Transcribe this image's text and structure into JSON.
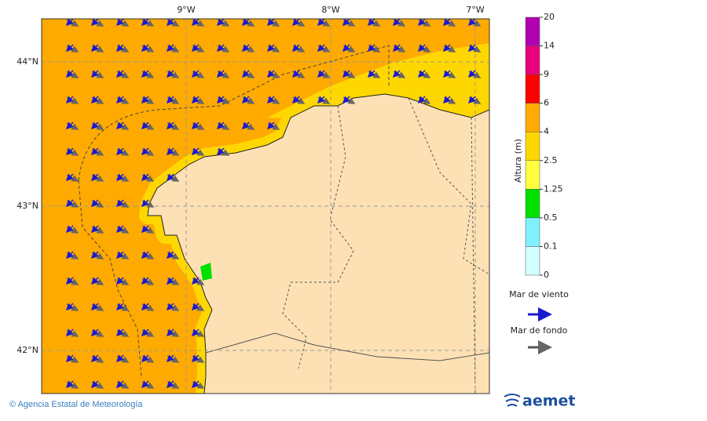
{
  "map": {
    "lon_labels": [
      "9°W",
      "8°W",
      "7°W"
    ],
    "lat_labels": [
      "44°N",
      "43°N",
      "42°N"
    ],
    "colorbar": {
      "label": "Altura (m)",
      "levels": [
        20,
        14,
        9,
        6,
        4,
        2.5,
        1.25,
        0.5,
        0.1,
        0
      ],
      "colors": [
        "#b000b0",
        "#e8007c",
        "#ff0000",
        "#ffaa00",
        "#ffd700",
        "#ffff40",
        "#00e000",
        "#80f0ff",
        "#d4ffff"
      ]
    },
    "legend": {
      "wind_sea": "Mar de viento",
      "swell": "Mar de fondo"
    },
    "footer": {
      "credit": "© Agencia Estatal de Meteorología",
      "logo": "aemet"
    }
  }
}
